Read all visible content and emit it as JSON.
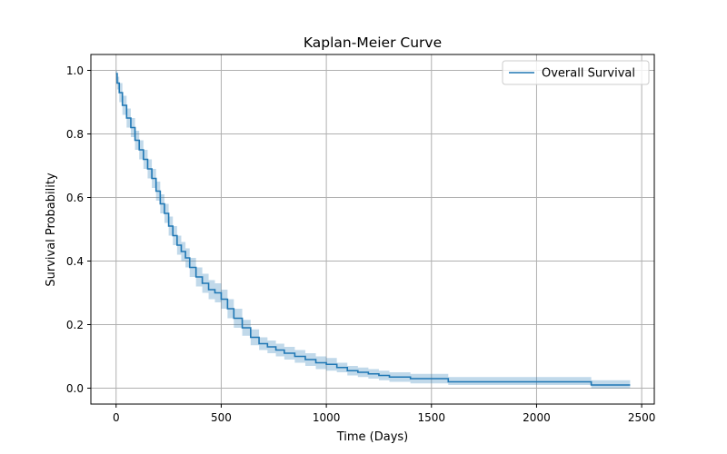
{
  "chart_data": {
    "type": "line",
    "title": "Kaplan-Meier Curve",
    "xlabel": "Time (Days)",
    "ylabel": "Survival Probability",
    "xlim": [
      -120,
      2560
    ],
    "ylim": [
      -0.05,
      1.05
    ],
    "xticks": [
      0,
      500,
      1000,
      1500,
      2000,
      2500
    ],
    "xtick_labels": [
      "0",
      "500",
      "1000",
      "1500",
      "2000",
      "2500"
    ],
    "yticks": [
      0.0,
      0.2,
      0.4,
      0.6,
      0.8,
      1.0
    ],
    "ytick_labels": [
      "0.0",
      "0.2",
      "0.4",
      "0.6",
      "0.8",
      "1.0"
    ],
    "grid": true,
    "legend_position": "top-right",
    "colors": {
      "line": "#1f77b4",
      "ci_fill": "#1f77b4",
      "grid": "#b0b0b0"
    },
    "series": [
      {
        "name": "Overall Survival",
        "step": "post",
        "x": [
          0,
          5,
          15,
          30,
          50,
          70,
          90,
          110,
          130,
          150,
          170,
          190,
          210,
          230,
          250,
          270,
          290,
          310,
          330,
          350,
          380,
          410,
          440,
          470,
          500,
          530,
          560,
          600,
          640,
          680,
          720,
          760,
          800,
          850,
          900,
          950,
          1000,
          1050,
          1100,
          1150,
          1200,
          1250,
          1300,
          1400,
          1500,
          1580,
          2000,
          2260,
          2445
        ],
        "y": [
          0.99,
          0.96,
          0.93,
          0.89,
          0.85,
          0.82,
          0.78,
          0.75,
          0.72,
          0.69,
          0.66,
          0.62,
          0.58,
          0.55,
          0.51,
          0.48,
          0.45,
          0.43,
          0.41,
          0.38,
          0.35,
          0.33,
          0.31,
          0.3,
          0.28,
          0.25,
          0.22,
          0.19,
          0.16,
          0.14,
          0.13,
          0.12,
          0.11,
          0.1,
          0.09,
          0.08,
          0.075,
          0.065,
          0.055,
          0.05,
          0.045,
          0.04,
          0.035,
          0.03,
          0.03,
          0.02,
          0.02,
          0.01,
          0.01
        ],
        "ci_lower": [
          0.97,
          0.94,
          0.9,
          0.86,
          0.82,
          0.79,
          0.75,
          0.72,
          0.69,
          0.66,
          0.63,
          0.59,
          0.55,
          0.52,
          0.48,
          0.45,
          0.42,
          0.4,
          0.38,
          0.35,
          0.32,
          0.3,
          0.28,
          0.27,
          0.25,
          0.22,
          0.19,
          0.165,
          0.135,
          0.12,
          0.11,
          0.1,
          0.09,
          0.08,
          0.07,
          0.06,
          0.055,
          0.05,
          0.04,
          0.035,
          0.03,
          0.025,
          0.02,
          0.015,
          0.015,
          0.01,
          0.01,
          0.0,
          0.0
        ],
        "ci_upper": [
          1.0,
          0.98,
          0.96,
          0.92,
          0.88,
          0.85,
          0.81,
          0.78,
          0.75,
          0.72,
          0.69,
          0.65,
          0.61,
          0.58,
          0.54,
          0.51,
          0.48,
          0.46,
          0.44,
          0.41,
          0.38,
          0.36,
          0.34,
          0.33,
          0.31,
          0.28,
          0.25,
          0.215,
          0.185,
          0.16,
          0.15,
          0.14,
          0.13,
          0.12,
          0.11,
          0.1,
          0.095,
          0.08,
          0.07,
          0.065,
          0.06,
          0.055,
          0.05,
          0.045,
          0.045,
          0.035,
          0.035,
          0.025,
          0.025
        ]
      }
    ]
  }
}
